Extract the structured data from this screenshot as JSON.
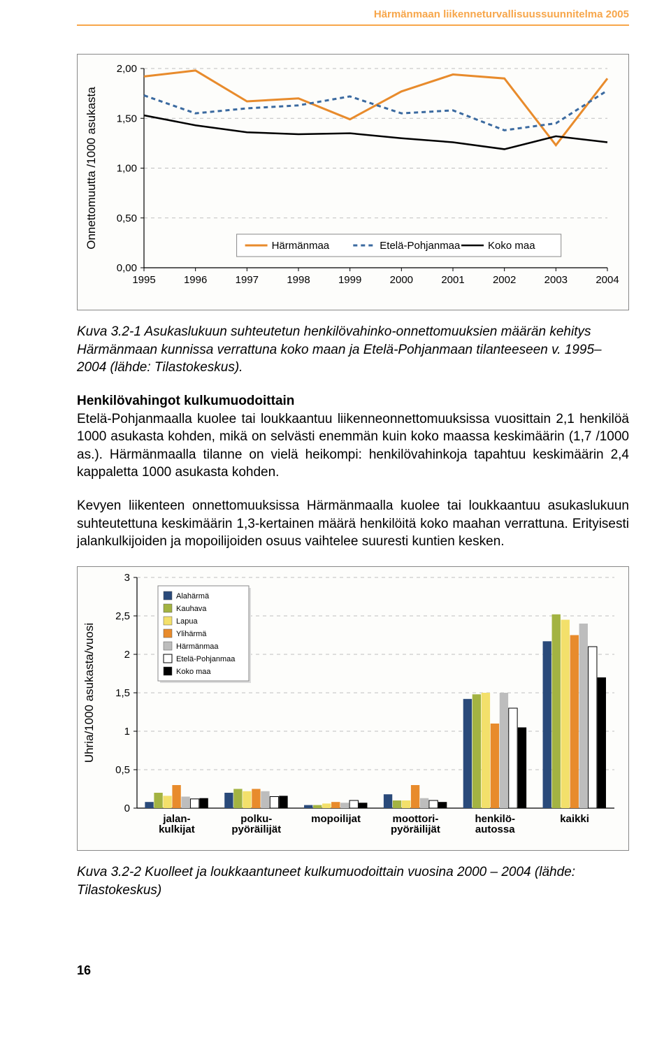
{
  "header": {
    "title": "Härmänmaan liikenneturvallisuussuunnitelma 2005",
    "color": "#f7a64a"
  },
  "chart1": {
    "type": "line",
    "ylabel": "Onnettomuutta /1000 asukasta",
    "yticks": [
      "0,00",
      "0,50",
      "1,00",
      "1,50",
      "2,00"
    ],
    "ylim": [
      0,
      2.0
    ],
    "xcats": [
      "1995",
      "1996",
      "1997",
      "1998",
      "1999",
      "2000",
      "2001",
      "2002",
      "2003",
      "2004"
    ],
    "grid_color": "#bfbfbf",
    "bg": "#fdfdfb",
    "series": [
      {
        "name": "Härmänmaa",
        "color": "#e88b2c",
        "dash": "none",
        "width": 3,
        "values": [
          1.92,
          1.98,
          1.67,
          1.7,
          1.49,
          1.77,
          1.94,
          1.9,
          1.23,
          1.9
        ]
      },
      {
        "name": "Etelä-Pohjanmaa",
        "color": "#3b6aa0",
        "dash": "6,5",
        "width": 3,
        "values": [
          1.73,
          1.55,
          1.6,
          1.63,
          1.72,
          1.55,
          1.58,
          1.38,
          1.45,
          1.78
        ]
      },
      {
        "name": "Koko maa",
        "color": "#000000",
        "dash": "none",
        "width": 2.5,
        "values": [
          1.53,
          1.43,
          1.36,
          1.34,
          1.35,
          1.3,
          1.26,
          1.19,
          1.32,
          1.26
        ]
      }
    ],
    "legend_box": true
  },
  "caption1": "Kuva 3.2-1 Asukaslukuun suhteutetun henkilövahinko-onnettomuuksien määrän kehitys Härmänmaan kunnissa verrattuna koko maan ja Etelä-Pohjanmaan tilanteeseen v. 1995–2004 (lähde: Tilastokeskus).",
  "section_title": "Henkilövahingot kulkumuodoittain",
  "para1": "Etelä-Pohjanmaalla kuolee tai loukkaantuu liikenneonnettomuuksissa vuosittain 2,1 henkilöä 1000 asukasta kohden, mikä on selvästi enemmän kuin koko maassa keskimäärin (1,7 /1000 as.). Härmänmaalla tilanne on vielä heikompi: henkilövahinkoja tapahtuu keskimäärin 2,4 kappaletta 1000 asukasta kohden.",
  "para2": "Kevyen liikenteen onnettomuuksissa Härmänmaalla kuolee tai loukkaantuu asukaslukuun suhteutettuna keskimäärin 1,3-kertainen määrä henkilöitä koko maahan verrattuna. Erityisesti jalankulkijoiden ja mopoilijoiden osuus vaihtelee suuresti kuntien kesken.",
  "chart2": {
    "type": "bar",
    "ylabel": "Uhria/1000 asukasta/vuosi",
    "yticks": [
      "0",
      "0,5",
      "1",
      "1,5",
      "2",
      "2,5",
      "3"
    ],
    "ylim": [
      0,
      3
    ],
    "xcats": [
      "jalan-\nkulkijat",
      "polku-\npyöräilijät",
      "mopoilijat",
      "moottori-\npyöräilijät",
      "henkilö-\nautossa",
      "kaikki"
    ],
    "grid_color": "#bfbfbf",
    "bg": "#fdfdfb",
    "series": [
      {
        "name": "Alahärmä",
        "color": "#2a4a7a",
        "values": [
          0.08,
          0.2,
          0.04,
          0.18,
          1.42,
          2.17
        ]
      },
      {
        "name": "Kauhava",
        "color": "#a3b342",
        "values": [
          0.2,
          0.25,
          0.04,
          0.1,
          1.48,
          2.52
        ]
      },
      {
        "name": "Lapua",
        "color": "#f3e06b",
        "values": [
          0.16,
          0.22,
          0.06,
          0.1,
          1.5,
          2.45
        ]
      },
      {
        "name": "Ylihärmä",
        "color": "#e88b2c",
        "values": [
          0.3,
          0.25,
          0.08,
          0.3,
          1.1,
          2.25
        ]
      },
      {
        "name": "Härmänmaa",
        "color": "#bdbdbd",
        "values": [
          0.15,
          0.22,
          0.07,
          0.13,
          1.5,
          2.4
        ]
      },
      {
        "name": "Etelä-Pohjanmaa",
        "color": "#ffffff",
        "stroke": "#000",
        "values": [
          0.12,
          0.15,
          0.1,
          0.1,
          1.3,
          2.1
        ]
      },
      {
        "name": "Koko maa",
        "color": "#000000",
        "values": [
          0.13,
          0.16,
          0.07,
          0.08,
          1.05,
          1.7
        ]
      }
    ]
  },
  "caption2": "Kuva 3.2-2 Kuolleet ja loukkaantuneet kulkumuodoittain vuosina 2000 – 2004 (lähde: Tilastokeskus)",
  "page_number": "16"
}
